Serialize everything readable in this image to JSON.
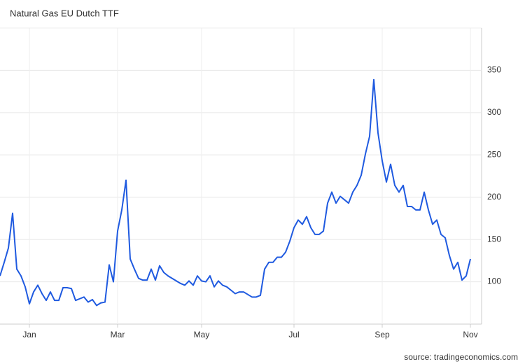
{
  "chart_data": {
    "type": "line",
    "title": "Natural Gas EU Dutch TTF",
    "source": "source: tradingeconomics.com",
    "categories": [
      null,
      null,
      null,
      null,
      null,
      null,
      null,
      "Jan",
      null,
      null,
      null,
      null,
      null,
      null,
      null,
      null,
      null,
      null,
      null,
      null,
      null,
      null,
      null,
      null,
      null,
      null,
      null,
      null,
      "Mar",
      null,
      null,
      null,
      null,
      null,
      null,
      null,
      null,
      null,
      null,
      null,
      null,
      null,
      null,
      null,
      null,
      null,
      null,
      null,
      "May",
      null,
      null,
      null,
      null,
      null,
      null,
      null,
      null,
      null,
      null,
      null,
      null,
      null,
      null,
      null,
      null,
      null,
      null,
      null,
      null,
      null,
      "Jul",
      null,
      null,
      null,
      null,
      null,
      null,
      null,
      null,
      null,
      null,
      null,
      null,
      null,
      null,
      null,
      null,
      null,
      null,
      null,
      null,
      "Sep",
      null,
      null,
      null,
      null,
      null,
      null,
      null,
      null,
      null,
      null,
      null,
      null,
      null,
      null,
      null,
      null,
      null,
      null,
      null,
      null,
      "Nov"
    ],
    "series": [
      {
        "color": "#1f5ae0",
        "values": [
          107,
          123,
          140,
          181,
          115,
          107,
          94,
          74,
          88,
          96,
          86,
          78,
          88,
          78,
          78,
          93,
          93,
          92,
          78,
          80,
          82,
          76,
          79,
          72,
          75,
          76,
          120,
          100,
          160,
          185,
          220,
          127,
          115,
          104,
          102,
          102,
          115,
          102,
          119,
          111,
          107,
          104,
          101,
          98,
          96,
          101,
          96,
          107,
          101,
          100,
          107,
          94,
          101,
          96,
          94,
          90,
          86,
          88,
          88,
          85,
          82,
          82,
          84,
          115,
          123,
          123,
          129,
          129,
          135,
          148,
          164,
          173,
          168,
          177,
          164,
          156,
          156,
          160,
          193,
          206,
          193,
          201,
          197,
          193,
          206,
          214,
          226,
          251,
          272,
          339,
          276,
          243,
          218,
          239,
          214,
          206,
          214,
          189,
          189,
          185,
          185,
          206,
          185,
          168,
          173,
          156,
          152,
          131,
          115,
          123,
          102,
          107,
          127
        ]
      }
    ],
    "ylim": [
      50,
      400
    ],
    "yticks": [
      100,
      150,
      200,
      250,
      300,
      350
    ],
    "grid": true
  }
}
